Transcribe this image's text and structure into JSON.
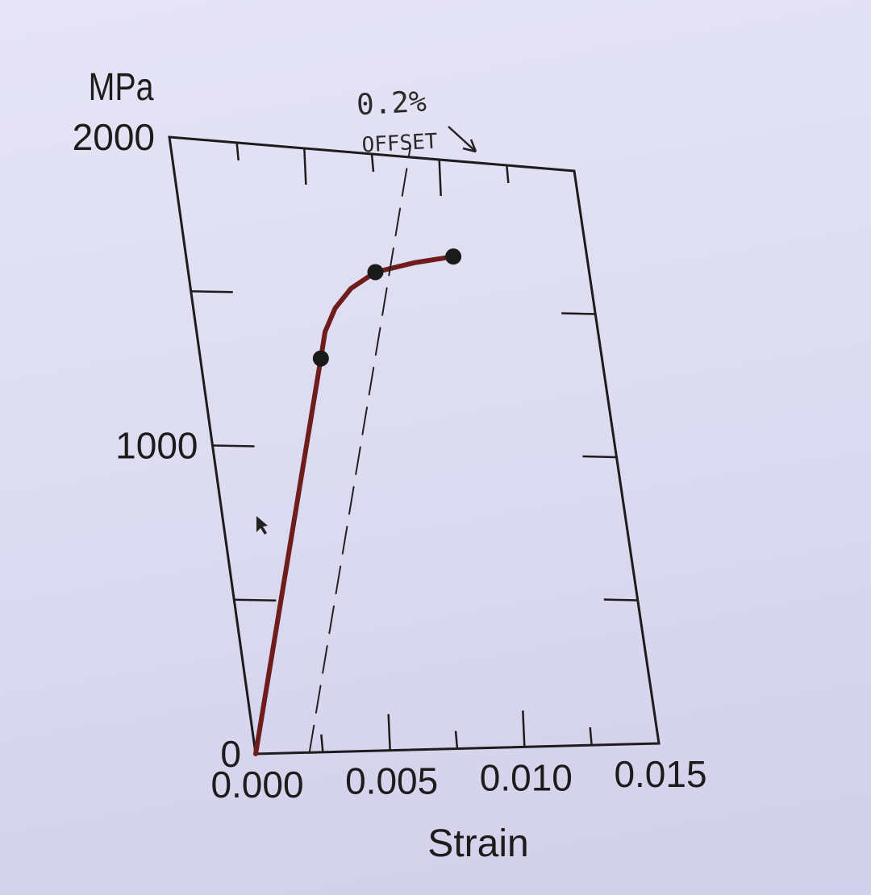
{
  "chart_data": {
    "type": "line",
    "x_axis": {
      "label": "Strain",
      "range": [
        0,
        0.015
      ],
      "major_ticks": [
        0.0,
        0.005,
        0.01,
        0.015
      ],
      "tick_labels": [
        "0.000",
        "0.005",
        "0.010",
        "0.015"
      ],
      "minor_ticks": [
        0.0025,
        0.0075,
        0.0125
      ]
    },
    "y_axis": {
      "unit": "MPa",
      "range": [
        0,
        2000
      ],
      "tick_labels": [
        "0",
        "1000",
        "2000"
      ],
      "labeled_ticks": [
        0,
        1000,
        2000
      ],
      "ticks": [
        500,
        1000,
        1500
      ]
    },
    "grid": false,
    "series": [
      {
        "style": "solid",
        "color": "#6e1c1c",
        "points": [
          {
            "x": 0.0,
            "y": 0
          },
          {
            "x": 0.0045,
            "y": 1300
          },
          {
            "x": 0.0048,
            "y": 1390
          },
          {
            "x": 0.0053,
            "y": 1470
          },
          {
            "x": 0.006,
            "y": 1540
          },
          {
            "x": 0.007,
            "y": 1600
          },
          {
            "x": 0.0085,
            "y": 1640
          },
          {
            "x": 0.01,
            "y": 1670
          }
        ],
        "markers": [
          {
            "x": 0.0045,
            "y": 1300
          },
          {
            "x": 0.007,
            "y": 1600
          },
          {
            "x": 0.01,
            "y": 1670
          }
        ]
      },
      {
        "style": "dashed",
        "color": "#222222",
        "points": [
          {
            "x": 0.002,
            "y": 0
          },
          {
            "x": 0.009,
            "y": 2040
          }
        ]
      }
    ],
    "annotation": {
      "line1": "0.2%",
      "line2": "OFFSET"
    }
  }
}
